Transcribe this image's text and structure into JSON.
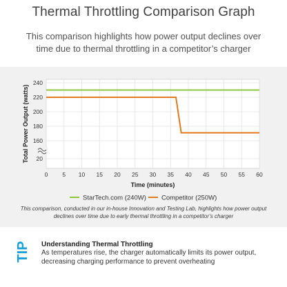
{
  "header": {
    "title": "Thermal Throttling Comparison Graph",
    "subtitle": "This comparison highlights how power output declines over time due to thermal throttling in a competitor’s charger"
  },
  "chart_data": {
    "type": "line",
    "xlabel": "Time (minutes)",
    "ylabel": "Total Power Output (watts)",
    "x_ticks": [
      0,
      5,
      10,
      15,
      20,
      25,
      30,
      35,
      40,
      45,
      50,
      55,
      60
    ],
    "y_ticks": [
      20,
      160,
      180,
      200,
      220,
      240
    ],
    "xlim": [
      0,
      60
    ],
    "ylim_upper": [
      150,
      245
    ],
    "y_axis_break": true,
    "grid": true,
    "legend_position": "bottom",
    "series": [
      {
        "name": "StarTech.com (240W)",
        "color": "#8cc63f",
        "points": [
          [
            0,
            230
          ],
          [
            60,
            230
          ]
        ]
      },
      {
        "name": "Competitor (250W)",
        "color": "#e07a1f",
        "points": [
          [
            0,
            220
          ],
          [
            36.5,
            220
          ],
          [
            38,
            171
          ],
          [
            60,
            171
          ]
        ]
      }
    ]
  },
  "caption": "This comparison, conducted in our in-house Innovation and Testing Lab, highlights how power output declines over time due to early thermal throttling in a competitor’s charger",
  "tip": {
    "badge": "TIP",
    "heading": "Understanding Thermal Throttling",
    "body": "As temperatures rise, the charger automatically limits its power output, decreasing charging performance to prevent overheating",
    "badge_color": "#1aa0d8"
  }
}
